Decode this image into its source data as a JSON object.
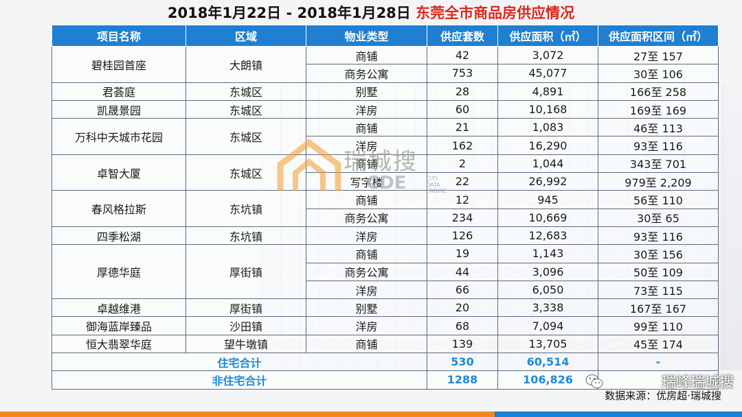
{
  "title": {
    "prefix": "2018年1月22日 - 2018年1月28日 ",
    "highlight": "东莞全市商品房供应情况"
  },
  "table": {
    "headers": [
      "项目名称",
      "区域",
      "物业类型",
      "供应套数",
      "供应面积（㎡）",
      "供应面积区间（㎡）"
    ],
    "rows": [
      {
        "project": "碧桂园首座",
        "area": "大朗镇",
        "type": "商铺",
        "units": "42",
        "sqm": "3,072",
        "range": "27至 157"
      },
      {
        "type": "商务公寓",
        "units": "753",
        "sqm": "45,077",
        "range": "30至 106"
      },
      {
        "project": "君荟庭",
        "area": "东城区",
        "type": "别墅",
        "units": "28",
        "sqm": "4,891",
        "range": "166至 258"
      },
      {
        "project": "凯晟景园",
        "area": "东城区",
        "type": "洋房",
        "units": "60",
        "sqm": "10,168",
        "range": "169至 169"
      },
      {
        "project": "万科中天城市花园",
        "area": "东城区",
        "type": "商铺",
        "units": "21",
        "sqm": "1,083",
        "range": "46至 113"
      },
      {
        "type": "洋房",
        "units": "162",
        "sqm": "16,290",
        "range": "93至 116"
      },
      {
        "project": "卓智大厦",
        "area": "东城区",
        "type": "商铺",
        "units": "2",
        "sqm": "1,044",
        "range": "343至 701"
      },
      {
        "type": "写字楼",
        "units": "22",
        "sqm": "26,992",
        "range": "979至 2,209"
      },
      {
        "project": "春风格拉斯",
        "area": "东坑镇",
        "type": "商铺",
        "units": "12",
        "sqm": "945",
        "range": "56至 110"
      },
      {
        "type": "商务公寓",
        "units": "234",
        "sqm": "10,669",
        "range": "30至 65"
      },
      {
        "project": "四季松湖",
        "area": "东坑镇",
        "type": "洋房",
        "units": "126",
        "sqm": "12,683",
        "range": "93至 116"
      },
      {
        "project": "厚德华庭",
        "area": "厚街镇",
        "type": "商铺",
        "units": "19",
        "sqm": "1,143",
        "range": "30至 156"
      },
      {
        "type": "商务公寓",
        "units": "44",
        "sqm": "3,096",
        "range": "50至 109"
      },
      {
        "type": "洋房",
        "units": "66",
        "sqm": "6,050",
        "range": "73至 115"
      },
      {
        "project": "卓越维港",
        "area": "厚街镇",
        "type": "别墅",
        "units": "20",
        "sqm": "3,338",
        "range": "167至 167"
      },
      {
        "project": "御海蓝岸臻品",
        "area": "沙田镇",
        "type": "洋房",
        "units": "68",
        "sqm": "7,094",
        "range": "99至 110"
      },
      {
        "project": "恒大翡翠华庭",
        "area": "望牛墩镇",
        "type": "商铺",
        "units": "139",
        "sqm": "13,705",
        "range": "45至 174"
      }
    ],
    "totals": [
      {
        "label": "住宅合计",
        "units": "530",
        "sqm": "60,514",
        "range": "-"
      },
      {
        "label": "非住宅合计",
        "units": "1288",
        "sqm": "106,826",
        "range": ""
      }
    ]
  },
  "watermark": {
    "text": "瑞城搜",
    "sub": "CDE",
    "tiny": [
      "CITY DATA",
      "ENGINE"
    ]
  },
  "brand": "瑞峰瑞城搜",
  "source": "数据来源：优房超·瑞城搜",
  "colors": {
    "header_blue": "#1f7fd0",
    "title_red": "#e0251b",
    "total_blue": "#1f8ad6",
    "bar_orange": "#f08a1e"
  }
}
